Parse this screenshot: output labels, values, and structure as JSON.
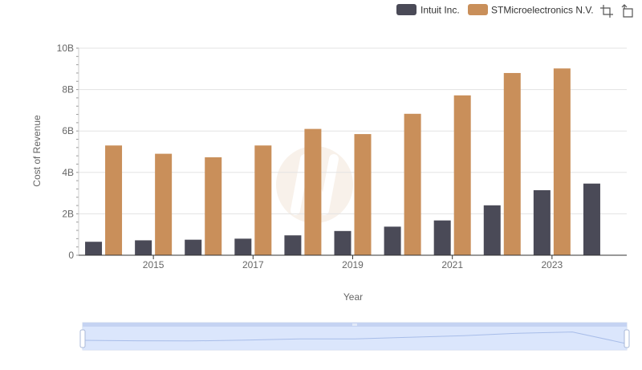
{
  "legend": [
    {
      "name": "Intuit Inc.",
      "color": "#4a4a57"
    },
    {
      "name": "STMicroelectronics N.V.",
      "color": "#c98f5a"
    }
  ],
  "toolbar": {
    "icons": [
      "crop-icon",
      "restore-icon"
    ]
  },
  "chart_data": {
    "type": "bar",
    "title": "",
    "xlabel": "Year",
    "ylabel": "Cost of Revenue",
    "x": [
      2014,
      2015,
      2016,
      2017,
      2018,
      2019,
      2020,
      2021,
      2022,
      2023,
      2024
    ],
    "x_tick_labels": [
      "2015",
      "2017",
      "2019",
      "2021",
      "2023"
    ],
    "y_tick_labels": [
      "0",
      "2B",
      "4B",
      "6B",
      "8B",
      "10B"
    ],
    "ylim": [
      0,
      10000000000
    ],
    "grid": true,
    "legend_position": "top-right",
    "series": [
      {
        "name": "Intuit Inc.",
        "color": "#4a4a57",
        "values": [
          650000000,
          720000000,
          750000000,
          800000000,
          960000000,
          1170000000,
          1380000000,
          1680000000,
          2410000000,
          3140000000,
          3460000000
        ]
      },
      {
        "name": "STMicroelectronics N.V.",
        "color": "#c98f5a",
        "values": [
          5300000000,
          4900000000,
          4730000000,
          5300000000,
          6100000000,
          5850000000,
          6830000000,
          7720000000,
          8800000000,
          9020000000,
          null
        ]
      }
    ],
    "zoom_slider": {
      "start": 0,
      "end": 1
    }
  }
}
